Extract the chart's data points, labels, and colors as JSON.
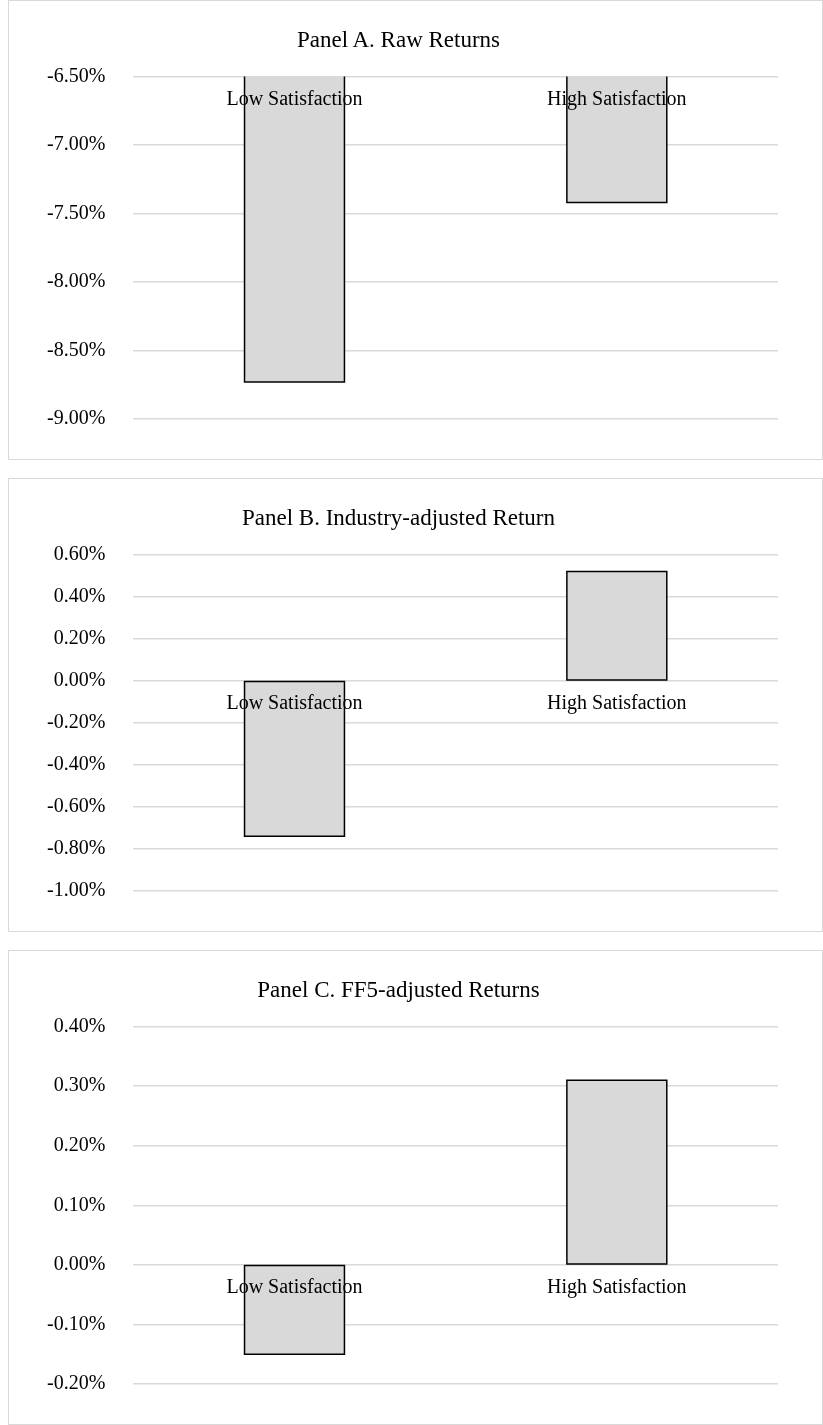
{
  "chart_data": [
    {
      "type": "bar",
      "title": "Panel A. Raw Returns",
      "categories": [
        "Low Satisfaction",
        "High Satisfaction"
      ],
      "values": [
        -8.73,
        -7.42
      ],
      "color": "#d9d9d9",
      "ylim": [
        -9,
        -6.5
      ],
      "yticks": [
        {
          "value": -9,
          "label": "-9.00%"
        },
        {
          "value": -8.5,
          "label": "-8.50%"
        },
        {
          "value": -8,
          "label": "-8.00%"
        },
        {
          "value": -7.5,
          "label": "-7.50%"
        },
        {
          "value": -7,
          "label": "-7.00%"
        },
        {
          "value": -6.5,
          "label": "-6.50%"
        }
      ],
      "grid": "y"
    },
    {
      "type": "bar",
      "title": "Panel B. Industry-adjusted Return",
      "categories": [
        "Low Satisfaction",
        "High Satisfaction"
      ],
      "values": [
        -0.74,
        0.52
      ],
      "color": "#d9d9d9",
      "ylim": [
        -1,
        0.6
      ],
      "yticks": [
        {
          "value": -1,
          "label": "-1.00%"
        },
        {
          "value": -0.8,
          "label": "-0.80%"
        },
        {
          "value": -0.6,
          "label": "-0.60%"
        },
        {
          "value": -0.4,
          "label": "-0.40%"
        },
        {
          "value": -0.2,
          "label": "-0.20%"
        },
        {
          "value": 0,
          "label": "0.00%"
        },
        {
          "value": 0.2,
          "label": "0.20%"
        },
        {
          "value": 0.4,
          "label": "0.40%"
        },
        {
          "value": 0.6,
          "label": "0.60%"
        }
      ],
      "grid": "y"
    },
    {
      "type": "bar",
      "title": "Panel C. FF5-adjusted Returns",
      "categories": [
        "Low Satisfaction",
        "High Satisfaction"
      ],
      "values": [
        -0.15,
        0.31
      ],
      "color": "#d9d9d9",
      "ylim": [
        -0.2,
        0.4
      ],
      "yticks": [
        {
          "value": -0.2,
          "label": "-0.20%"
        },
        {
          "value": -0.1,
          "label": "-0.10%"
        },
        {
          "value": 0,
          "label": "0.00%"
        },
        {
          "value": 0.1,
          "label": "0.10%"
        },
        {
          "value": 0.2,
          "label": "0.20%"
        },
        {
          "value": 0.3,
          "label": "0.30%"
        },
        {
          "value": 0.4,
          "label": "0.40%"
        }
      ],
      "grid": "y"
    }
  ]
}
